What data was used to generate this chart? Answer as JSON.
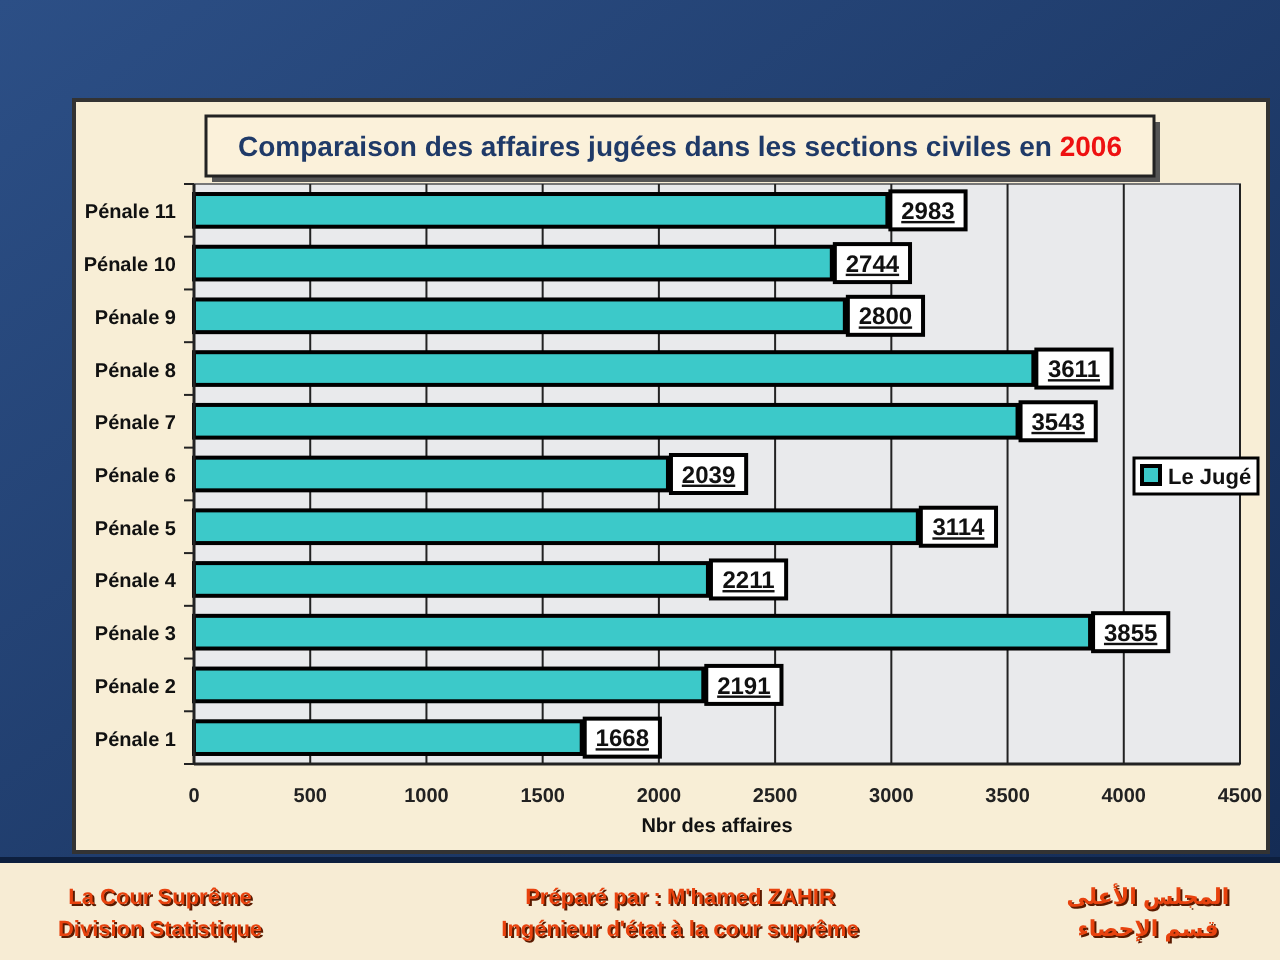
{
  "chart_data": {
    "type": "bar",
    "orientation": "horizontal",
    "title": "Comparaison des affaires jugées dans les sections civiles en 2006",
    "categories": [
      "Pénale 11",
      "Pénale 10",
      "Pénale 9",
      "Pénale 8",
      "Pénale 7",
      "Pénale 6",
      "Pénale 5",
      "Pénale 4",
      "Pénale 3",
      "Pénale 2",
      "Pénale 1"
    ],
    "series": [
      {
        "name": "Le Jugé",
        "color": "#3cc9c9",
        "values": [
          2983,
          2744,
          2800,
          3611,
          3543,
          2039,
          3114,
          2211,
          3855,
          2191,
          1668
        ]
      }
    ],
    "xlabel": "Nbr des affaires",
    "xlim": [
      0,
      4500
    ],
    "xticks": [
      0,
      500,
      1000,
      1500,
      2000,
      2500,
      3000,
      3500,
      4000,
      4500
    ],
    "grid": "x",
    "legend": "right",
    "data_labels": true,
    "annotations": [
      "La Cour Suprême",
      "Division Statistique",
      "Préparé par : M'hamed ZAHIR",
      "Ingénieur d'état à la cour suprême",
      "المجلس الأعلى",
      "قسم الإحصاء"
    ]
  }
}
